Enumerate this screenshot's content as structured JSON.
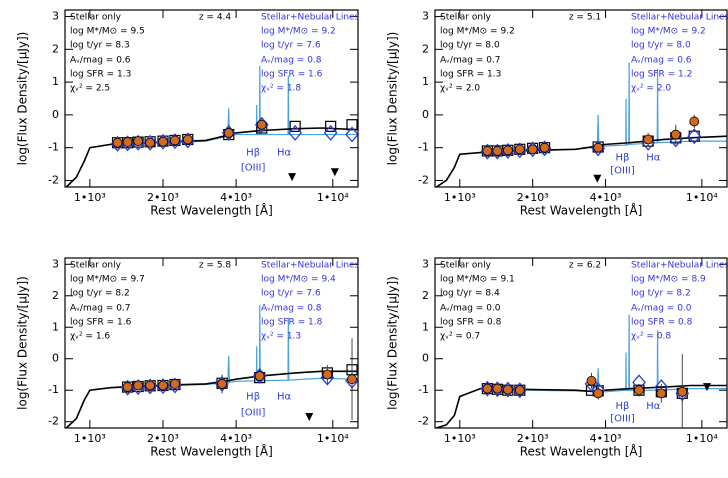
{
  "chart_data": [
    {
      "type": "scatter",
      "xlog": true,
      "redshift": "z = 4.4",
      "stellar_text": [
        "Stellar only",
        "log M*/M⊙ = 9.5",
        "log t/yr = 8.3",
        "Aᵥ/mag = 0.6",
        "log SFR = 1.3",
        "χᵥ² = 2.5"
      ],
      "nebular_text": [
        "Stellar+Nebular Lines",
        "log M*/M⊙ = 9.2",
        "log t/yr = 7.6",
        "Aᵥ/mag = 0.8",
        "log SFR = 1.6",
        "χᵥ² = 1.8"
      ],
      "xlabel": "Rest Wavelength [Å]",
      "ylabel": "log(Flux Density/[μJy])",
      "xlim": [
        790,
        12700
      ],
      "ylim": [
        -2.2,
        3.2
      ],
      "xticks": [
        {
          "value": 1000,
          "label": "1•10³"
        },
        {
          "value": 2000,
          "label": "2•10³"
        },
        {
          "value": 4000,
          "label": "4•10³"
        },
        {
          "value": 10000,
          "label": "1•10⁴"
        }
      ],
      "yticks": [
        -2,
        -1,
        0,
        1,
        2,
        3
      ],
      "series": [
        {
          "marker": "line",
          "color": "#4aa3df",
          "x": [
            800,
            880,
            950,
            1000,
            1216,
            1500,
            2000,
            3000,
            3700,
            3727,
            3754,
            4000,
            4850,
            4861,
            4872,
            4990,
            5007,
            5024,
            6540,
            6563,
            6586,
            9000,
            12700
          ],
          "values": [
            -2.2,
            -1.9,
            -1.4,
            -1.0,
            -0.9,
            -0.88,
            -0.85,
            -0.8,
            -0.65,
            0.2,
            -0.65,
            -0.6,
            -0.6,
            0.3,
            -0.6,
            -0.6,
            1.5,
            -0.6,
            -0.6,
            1.2,
            -0.6,
            -0.6,
            -0.6
          ]
        },
        {
          "marker": "line",
          "color": "#000000",
          "x": [
            800,
            880,
            950,
            1000,
            1216,
            1500,
            2000,
            3000,
            3700,
            4000,
            5000,
            7000,
            9000,
            12700
          ],
          "values": [
            -2.2,
            -1.9,
            -1.4,
            -1.0,
            -0.9,
            -0.87,
            -0.83,
            -0.78,
            -0.62,
            -0.55,
            -0.48,
            -0.42,
            -0.4,
            -0.45
          ]
        },
        {
          "marker": "square",
          "color": "#000000",
          "x": [
            1300,
            1430,
            1580,
            1770,
            2000,
            2240,
            2530,
            3730,
            5100,
            7000,
            9800,
            12000
          ],
          "values": [
            -0.85,
            -0.85,
            -0.83,
            -0.82,
            -0.8,
            -0.78,
            -0.75,
            -0.6,
            -0.4,
            -0.35,
            -0.35,
            -0.3
          ]
        },
        {
          "marker": "diamond",
          "color": "#2a3fd6",
          "x": [
            1300,
            1430,
            1580,
            1770,
            2000,
            2240,
            2530,
            3730,
            5100,
            7000,
            9800,
            12000
          ],
          "values": [
            -0.88,
            -0.87,
            -0.85,
            -0.85,
            -0.82,
            -0.8,
            -0.78,
            -0.55,
            -0.3,
            -0.55,
            -0.55,
            -0.6
          ]
        },
        {
          "marker": "circle",
          "color": "#d2691e",
          "x": [
            1300,
            1430,
            1580,
            1770,
            2000,
            2240,
            2530,
            3730,
            5100
          ],
          "values": [
            -0.85,
            -0.83,
            -0.8,
            -0.85,
            -0.82,
            -0.78,
            -0.75,
            -0.55,
            -0.3
          ],
          "errors": [
            0.08,
            0.08,
            0.1,
            0.08,
            0.08,
            0.1,
            0.1,
            0.2,
            0.2
          ]
        },
        {
          "marker": "triangle",
          "color": "#000000",
          "x": [
            6800,
            10200
          ],
          "values": [
            -1.9,
            -1.75
          ]
        }
      ],
      "annotations": [
        {
          "text": "Hβ",
          "x": 4700,
          "y": -1.15
        },
        {
          "text": "[OIII]",
          "x": 4700,
          "y": -1.6
        },
        {
          "text": "Hα",
          "x": 6300,
          "y": -1.15
        }
      ]
    },
    {
      "type": "scatter",
      "xlog": true,
      "redshift": "z = 5.1",
      "stellar_text": [
        "Stellar only",
        "log M*/M⊙ = 9.2",
        "log t/yr = 8.0",
        "Aᵥ/mag = 0.7",
        "log SFR = 1.3",
        "χᵥ² = 2.0"
      ],
      "nebular_text": [
        "Stellar+Nebular Lines",
        "log M*/M⊙ = 9.2",
        "log t/yr = 8.0",
        "Aᵥ/mag = 0.6",
        "log SFR = 1.2",
        "χᵥ² = 2.0"
      ],
      "xlabel": "Rest Wavelength [Å]",
      "ylabel": "log(Flux Density/[μJy])",
      "xlim": [
        790,
        12700
      ],
      "ylim": [
        -2.2,
        3.2
      ],
      "xticks": [
        {
          "value": 1000,
          "label": "1•10³"
        },
        {
          "value": 2000,
          "label": "2•10³"
        },
        {
          "value": 4000,
          "label": "4•10³"
        },
        {
          "value": 10000,
          "label": "1•10⁴"
        }
      ],
      "yticks": [
        -2,
        -1,
        0,
        1,
        2,
        3
      ],
      "series": [
        {
          "marker": "line",
          "color": "#4aa3df",
          "x": [
            800,
            880,
            950,
            1000,
            1216,
            1500,
            2000,
            3000,
            3700,
            3727,
            3754,
            4000,
            4850,
            4861,
            4872,
            4990,
            5007,
            5024,
            6540,
            6563,
            6586,
            9000,
            12700
          ],
          "values": [
            -2.2,
            -2.0,
            -1.6,
            -1.2,
            -1.15,
            -1.12,
            -1.1,
            -1.05,
            -0.98,
            0.0,
            -0.98,
            -0.95,
            -0.92,
            0.5,
            -0.92,
            -0.9,
            1.6,
            -0.9,
            -0.85,
            1.4,
            -0.85,
            -0.8,
            -0.8
          ]
        },
        {
          "marker": "line",
          "color": "#000000",
          "x": [
            800,
            880,
            950,
            1000,
            1216,
            1500,
            2000,
            3000,
            3700,
            4000,
            5000,
            7000,
            9000,
            12700
          ],
          "values": [
            -2.2,
            -2.0,
            -1.6,
            -1.2,
            -1.15,
            -1.12,
            -1.08,
            -1.05,
            -0.95,
            -0.9,
            -0.85,
            -0.75,
            -0.7,
            -0.65
          ]
        },
        {
          "marker": "square",
          "color": "#000000",
          "x": [
            1300,
            1430,
            1580,
            1770,
            2000,
            2240,
            3730,
            6000,
            7800,
            9300
          ],
          "values": [
            -1.1,
            -1.1,
            -1.08,
            -1.05,
            -1.02,
            -1.0,
            -0.98,
            -0.8,
            -0.7,
            -0.65
          ]
        },
        {
          "marker": "diamond",
          "color": "#2a3fd6",
          "x": [
            1300,
            1430,
            1580,
            1770,
            2000,
            2240,
            3730,
            6000,
            7800,
            9300
          ],
          "values": [
            -1.12,
            -1.12,
            -1.1,
            -1.08,
            -1.05,
            -1.02,
            -1.02,
            -0.85,
            -0.75,
            -0.65
          ]
        },
        {
          "marker": "circle",
          "color": "#d2691e",
          "x": [
            1300,
            1430,
            1580,
            1770,
            2000,
            2240,
            3730,
            6000,
            7800,
            9300
          ],
          "values": [
            -1.1,
            -1.1,
            -1.08,
            -1.05,
            -1.05,
            -1.0,
            -1.0,
            -0.75,
            -0.6,
            -0.2
          ],
          "errors": [
            0.08,
            0.08,
            0.08,
            0.08,
            0.1,
            0.1,
            0.15,
            0.2,
            0.3,
            0.2
          ]
        },
        {
          "marker": "triangle",
          "color": "#000000",
          "x": [
            3700
          ],
          "values": [
            -1.95
          ]
        }
      ],
      "annotations": [
        {
          "text": "Hβ",
          "x": 4700,
          "y": -1.3
        },
        {
          "text": "[OIII]",
          "x": 4700,
          "y": -1.7
        },
        {
          "text": "Hα",
          "x": 6300,
          "y": -1.3
        }
      ]
    },
    {
      "type": "scatter",
      "xlog": true,
      "redshift": "z = 5.8",
      "stellar_text": [
        "Stellar only",
        "log M*/M⊙ = 9.7",
        "log t/yr = 8.2",
        "Aᵥ/mag = 0.7",
        "log SFR = 1.6",
        "χᵥ² = 1.6"
      ],
      "nebular_text": [
        "Stellar+Nebular Lines",
        "log M*/M⊙ = 9.4",
        "log t/yr = 7.6",
        "Aᵥ/mag = 0.8",
        "log SFR = 1.8",
        "χᵥ² = 1.3"
      ],
      "xlabel": "Rest Wavelength [Å]",
      "ylabel": "log(Flux Density/[μJy])",
      "xlim": [
        790,
        12700
      ],
      "ylim": [
        -2.2,
        3.2
      ],
      "xticks": [
        {
          "value": 1000,
          "label": "1•10³"
        },
        {
          "value": 2000,
          "label": "2•10³"
        },
        {
          "value": 4000,
          "label": "4•10³"
        },
        {
          "value": 10000,
          "label": "1•10⁴"
        }
      ],
      "yticks": [
        -2,
        -1,
        0,
        1,
        2,
        3
      ],
      "series": [
        {
          "marker": "line",
          "color": "#4aa3df",
          "x": [
            800,
            880,
            950,
            1000,
            1216,
            1500,
            2000,
            3000,
            3700,
            3727,
            3754,
            4000,
            4850,
            4861,
            4872,
            4990,
            5007,
            5024,
            6540,
            6563,
            6586,
            9000,
            12700
          ],
          "values": [
            -2.2,
            -1.9,
            -1.3,
            -1.0,
            -0.92,
            -0.9,
            -0.86,
            -0.82,
            -0.75,
            0.1,
            -0.75,
            -0.72,
            -0.7,
            0.4,
            -0.7,
            -0.7,
            1.7,
            -0.7,
            -0.68,
            1.3,
            -0.68,
            -0.62,
            -0.65
          ]
        },
        {
          "marker": "line",
          "color": "#000000",
          "x": [
            800,
            880,
            950,
            1000,
            1216,
            1500,
            2000,
            3000,
            3700,
            4000,
            5000,
            7000,
            9000,
            12700
          ],
          "values": [
            -2.2,
            -1.9,
            -1.3,
            -1.0,
            -0.92,
            -0.88,
            -0.84,
            -0.8,
            -0.7,
            -0.65,
            -0.55,
            -0.45,
            -0.4,
            -0.4
          ]
        },
        {
          "marker": "square",
          "color": "#000000",
          "x": [
            1430,
            1580,
            1770,
            2000,
            2240,
            3500,
            5000,
            9500,
            12000
          ],
          "values": [
            -0.9,
            -0.88,
            -0.86,
            -0.85,
            -0.82,
            -0.78,
            -0.6,
            -0.45,
            -0.35
          ]
        },
        {
          "marker": "diamond",
          "color": "#2a3fd6",
          "x": [
            1430,
            1580,
            1770,
            2000,
            2240,
            3500,
            5000,
            9500,
            12000
          ],
          "values": [
            -0.92,
            -0.9,
            -0.88,
            -0.87,
            -0.85,
            -0.8,
            -0.55,
            -0.6,
            -0.7
          ]
        },
        {
          "marker": "circle",
          "color": "#d2691e",
          "x": [
            1430,
            1580,
            1770,
            2000,
            2240,
            3500,
            5000,
            9500,
            12000
          ],
          "values": [
            -0.9,
            -0.85,
            -0.85,
            -0.85,
            -0.8,
            -0.8,
            -0.55,
            -0.5,
            -0.65
          ],
          "errors": [
            0.1,
            0.1,
            0.1,
            0.1,
            0.1,
            0.3,
            0.2,
            0.3,
            1.3
          ]
        },
        {
          "marker": "triangle",
          "color": "#000000",
          "x": [
            8000
          ],
          "values": [
            -1.85
          ]
        }
      ],
      "annotations": [
        {
          "text": "Hβ",
          "x": 4700,
          "y": -1.2
        },
        {
          "text": "[OIII]",
          "x": 4700,
          "y": -1.7
        },
        {
          "text": "Hα",
          "x": 6300,
          "y": -1.2
        }
      ]
    },
    {
      "type": "scatter",
      "xlog": true,
      "redshift": "z = 6.2",
      "stellar_text": [
        "Stellar only",
        "log M*/M⊙ = 9.1",
        "log t/yr = 8.4",
        "Aᵥ/mag = 0.0",
        "log SFR = 0.8",
        "χᵥ² = 0.7"
      ],
      "nebular_text": [
        "Stellar+Nebular Lines",
        "log M*/M⊙ = 8.9",
        "log t/yr = 8.2",
        "Aᵥ/mag = 0.0",
        "log SFR = 0.8",
        "χᵥ² = 0.8"
      ],
      "xlabel": "Rest Wavelength [Å]",
      "ylabel": "log(Flux Density/[μJy])",
      "xlim": [
        790,
        12700
      ],
      "ylim": [
        -2.2,
        3.2
      ],
      "xticks": [
        {
          "value": 1000,
          "label": "1•10³"
        },
        {
          "value": 2000,
          "label": "2•10³"
        },
        {
          "value": 4000,
          "label": "4•10³"
        },
        {
          "value": 10000,
          "label": "1•10⁴"
        }
      ],
      "yticks": [
        -2,
        -1,
        0,
        1,
        2,
        3
      ],
      "series": [
        {
          "marker": "line",
          "color": "#4aa3df",
          "x": [
            800,
            880,
            950,
            1000,
            1216,
            1500,
            2000,
            3000,
            3700,
            3727,
            3754,
            4000,
            4850,
            4861,
            4872,
            4990,
            5007,
            5024,
            6540,
            6563,
            6586,
            9000,
            12700
          ],
          "values": [
            -2.2,
            -2.1,
            -1.8,
            -1.2,
            -0.95,
            -0.97,
            -1.0,
            -1.02,
            -1.05,
            -0.3,
            -1.05,
            -1.05,
            -1.0,
            0.2,
            -1.0,
            -1.0,
            1.4,
            -1.0,
            -1.0,
            0.9,
            -1.0,
            -0.95,
            -0.95
          ]
        },
        {
          "marker": "line",
          "color": "#000000",
          "x": [
            800,
            880,
            950,
            1000,
            1216,
            1500,
            2000,
            3000,
            3700,
            4000,
            5000,
            7000,
            9000,
            12700
          ],
          "values": [
            -2.2,
            -2.1,
            -1.8,
            -1.2,
            -0.95,
            -0.95,
            -0.98,
            -1.0,
            -1.05,
            -1.0,
            -0.95,
            -0.9,
            -0.85,
            -0.85
          ]
        },
        {
          "marker": "square",
          "color": "#000000",
          "x": [
            1300,
            1430,
            1580,
            1770,
            3500,
            3730,
            5500,
            6800,
            8300
          ],
          "values": [
            -0.95,
            -0.97,
            -1.0,
            -1.0,
            -1.0,
            -1.02,
            -1.0,
            -1.05,
            -1.1
          ]
        },
        {
          "marker": "diamond",
          "color": "#2a3fd6",
          "x": [
            1300,
            1430,
            1580,
            1770,
            3500,
            3730,
            5500,
            6800,
            8300
          ],
          "values": [
            -0.95,
            -0.97,
            -0.98,
            -1.0,
            -0.8,
            -1.0,
            -0.75,
            -0.9,
            -1.1
          ]
        },
        {
          "marker": "circle",
          "color": "#d2691e",
          "x": [
            1300,
            1430,
            1580,
            1770,
            3500,
            3730,
            5500,
            6800,
            8300
          ],
          "values": [
            -0.95,
            -0.95,
            -0.98,
            -1.0,
            -0.7,
            -1.1,
            -1.0,
            -1.1,
            -1.05
          ],
          "errors": [
            0.1,
            0.1,
            0.1,
            0.1,
            0.25,
            0.2,
            0.2,
            0.3,
            1.2
          ]
        },
        {
          "marker": "triangle",
          "color": "#000000",
          "x": [
            10500
          ],
          "values": [
            -0.9
          ]
        }
      ],
      "annotations": [
        {
          "text": "Hβ",
          "x": 4700,
          "y": -1.5
        },
        {
          "text": "[OIII]",
          "x": 4700,
          "y": -1.9
        },
        {
          "text": "Hα",
          "x": 6300,
          "y": -1.5
        }
      ]
    }
  ]
}
